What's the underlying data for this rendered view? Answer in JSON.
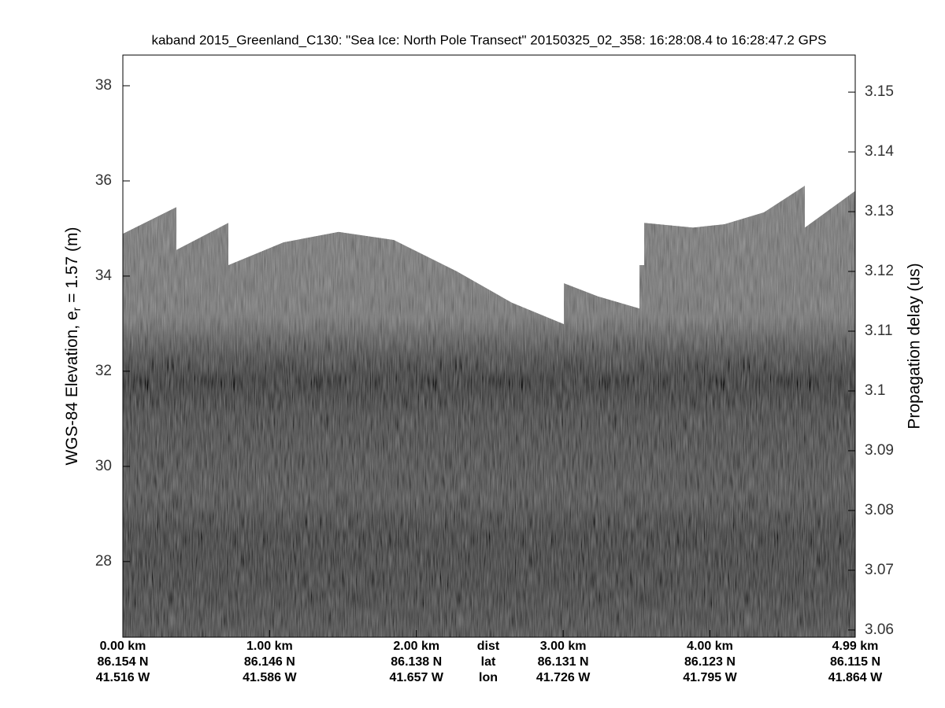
{
  "chart_data": {
    "type": "area",
    "title": "kaband 2015_Greenland_C130: \"Sea Ice: North Pole Transect\"  20150325_02_358: 16:28:08.4 to 16:28:47.2 GPS",
    "ylabel": {
      "text": "WGS-84 Elevation, e",
      "subscript": "r",
      "rest": " = 1.57 (m)"
    },
    "y2label": "Propagation delay (us)",
    "x": [
      0,
      0.365,
      0.365,
      0.719,
      0.719,
      1.095,
      1.47,
      1.846,
      2.275,
      2.651,
      3.005,
      3.005,
      3.241,
      3.52,
      3.52,
      3.552,
      3.552,
      3.885,
      4.099,
      4.368,
      4.647,
      4.647,
      4.99
    ],
    "values": [
      34.89,
      35.45,
      34.55,
      35.12,
      34.23,
      34.71,
      34.93,
      34.76,
      34.1,
      33.44,
      32.99,
      33.85,
      33.57,
      33.32,
      34.23,
      34.23,
      35.12,
      35.02,
      35.09,
      35.34,
      35.9,
      35.02,
      35.79
    ],
    "color": "#7a7a7a",
    "xlim": [
      0,
      4.99
    ],
    "xticks": [
      {
        "value": 0,
        "label": "0.00 km"
      },
      {
        "value": 1,
        "label": "1.00 km"
      },
      {
        "value": 2,
        "label": "2.00 km"
      },
      {
        "value": 3,
        "label": "3.00 km"
      },
      {
        "value": 4,
        "label": "4.00 km"
      },
      {
        "value": 4.99,
        "label": "4.99 km"
      }
    ],
    "lat_labels": [
      "86.154 N",
      "86.146 N",
      "86.138 N",
      "86.131 N",
      "86.123 N",
      "86.115 N"
    ],
    "lon_labels": [
      "41.516 W",
      "41.586 W",
      "41.657 W",
      "41.726 W",
      "41.795 W",
      "41.864 W"
    ],
    "row_labels": [
      "dist",
      "lat",
      "lon"
    ],
    "ylim": [
      26.41,
      38.645
    ],
    "yticks": [
      28,
      30,
      32,
      34,
      36,
      38
    ],
    "y2lim": [
      3.0588,
      3.1562
    ],
    "y2ticks": [
      3.06,
      3.07,
      3.08,
      3.09,
      3.1,
      3.11,
      3.12,
      3.13,
      3.14,
      3.15
    ]
  }
}
